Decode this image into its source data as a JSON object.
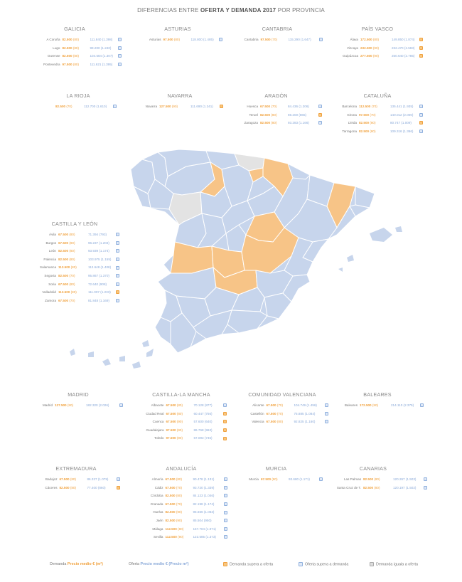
{
  "title": {
    "prefix": "DIFERENCIAS ENTRE ",
    "bold": "OFERTA Y DEMANDA 2017",
    "suffix": " POR PROVINCIA"
  },
  "colors": {
    "demand": "#f0a13d",
    "offer": "#88a8d8",
    "map_default": "#c7d5ec",
    "map_demand": "#f7c487",
    "map_equal": "#e3e3e3"
  },
  "regions": [
    {
      "name": "GALICIA",
      "rows": [
        {
          "province": "A Coruña",
          "demand": "82.500",
          "demand_unit": "(80)",
          "offer": "111.840",
          "offer_unit": "(1.398)",
          "icon": "blue"
        },
        {
          "province": "Lugo",
          "demand": "82.500",
          "demand_unit": "(80)",
          "offer": "99.200",
          "offer_unit": "(1.240)",
          "icon": "blue"
        },
        {
          "province": "Ourense",
          "demand": "82.500",
          "demand_unit": "(80)",
          "offer": "104.584",
          "offer_unit": "(1.307)",
          "icon": "blue"
        },
        {
          "province": "Pontevedra",
          "demand": "97.500",
          "demand_unit": "(80)",
          "offer": "111.621",
          "offer_unit": "(1.395)",
          "icon": "blue"
        }
      ]
    },
    {
      "name": "ASTURIAS",
      "rows": [
        {
          "province": "Asturias",
          "demand": "97.500",
          "demand_unit": "(80)",
          "offer": "118.800",
          "offer_unit": "(1.485)",
          "icon": "blue"
        }
      ]
    },
    {
      "name": "CANTABRIA",
      "rows": [
        {
          "province": "Cantabria",
          "demand": "97.500",
          "demand_unit": "(70)",
          "offer": "115.290",
          "offer_unit": "(1.647)",
          "icon": "blue"
        }
      ]
    },
    {
      "name": "PAÍS VASCO",
      "rows": [
        {
          "province": "Álava",
          "demand": "172.500",
          "demand_unit": "(80)",
          "offer": "149.850",
          "offer_unit": "(1.874)",
          "icon": "orange"
        },
        {
          "province": "Vizcaya",
          "demand": "232.500",
          "demand_unit": "(90)",
          "offer": "232.470",
          "offer_unit": "(2.583)",
          "icon": "orange"
        },
        {
          "province": "Guipúzcoa",
          "demand": "277.500",
          "demand_unit": "(90)",
          "offer": "250.640",
          "offer_unit": "(2.785)",
          "icon": "orange"
        }
      ]
    },
    {
      "name": "LA RIOJA",
      "rows": [
        {
          "province": "",
          "demand": "82.500",
          "demand_unit": "(70)",
          "offer": "112.700",
          "offer_unit": "(1.610)",
          "icon": "blue"
        }
      ]
    },
    {
      "name": "NAVARRA",
      "rows": [
        {
          "province": "Navarra",
          "demand": "127.500",
          "demand_unit": "(90)",
          "offer": "111.690",
          "offer_unit": "(1.241)",
          "icon": "orange"
        }
      ]
    },
    {
      "name": "ARAGÓN",
      "rows": [
        {
          "province": "Huesca",
          "demand": "67.500",
          "demand_unit": "(70)",
          "offer": "84.436",
          "offer_unit": "(1.206)",
          "icon": "blue"
        },
        {
          "province": "Teruel",
          "demand": "82.500",
          "demand_unit": "(80)",
          "offer": "69.200",
          "offer_unit": "(865)",
          "icon": "orange"
        },
        {
          "province": "Zaragoza",
          "demand": "82.500",
          "demand_unit": "(80)",
          "offer": "93.283",
          "offer_unit": "(1.166)",
          "icon": "blue"
        }
      ]
    },
    {
      "name": "CATALUÑA",
      "rows": [
        {
          "province": "Barcelona",
          "demand": "112.500",
          "demand_unit": "(70)",
          "offer": "135.441",
          "offer_unit": "(1.935)",
          "icon": "blue"
        },
        {
          "province": "Girona",
          "demand": "97.500",
          "demand_unit": "(70)",
          "offer": "140.012",
          "offer_unit": "(2.000)",
          "icon": "blue"
        },
        {
          "province": "Lleida",
          "demand": "82.500",
          "demand_unit": "(80)",
          "offer": "80.747",
          "offer_unit": "(1.009)",
          "icon": "orange"
        },
        {
          "province": "Tarragona",
          "demand": "82.500",
          "demand_unit": "(80)",
          "offer": "109.316",
          "offer_unit": "(1.366)",
          "icon": "blue"
        }
      ]
    },
    {
      "name": "CASTILLA Y LEÓN",
      "rows": [
        {
          "province": "Ávila",
          "demand": "67.500",
          "demand_unit": "(80)",
          "offer": "71.394",
          "offer_unit": "(793)",
          "icon": "blue"
        },
        {
          "province": "Burgos",
          "demand": "67.500",
          "demand_unit": "(80)",
          "offer": "96.237",
          "offer_unit": "(1.203)",
          "icon": "blue"
        },
        {
          "province": "León",
          "demand": "82.500",
          "demand_unit": "(80)",
          "offer": "93.939",
          "offer_unit": "(1.174)",
          "icon": "blue"
        },
        {
          "province": "Palencia",
          "demand": "82.500",
          "demand_unit": "(80)",
          "offer": "103.975",
          "offer_unit": "(1.155)",
          "icon": "blue"
        },
        {
          "province": "Salamanca",
          "demand": "112.500",
          "demand_unit": "(80)",
          "offer": "112.648",
          "offer_unit": "(1.408)",
          "icon": "blue"
        },
        {
          "province": "Segovia",
          "demand": "82.500",
          "demand_unit": "(70)",
          "offer": "95.867",
          "offer_unit": "(1.370)",
          "icon": "blue"
        },
        {
          "province": "Soria",
          "demand": "67.500",
          "demand_unit": "(80)",
          "offer": "72.640",
          "offer_unit": "(908)",
          "icon": "blue"
        },
        {
          "province": "Valladolid",
          "demand": "112.500",
          "demand_unit": "(80)",
          "offer": "111.007",
          "offer_unit": "(1.233)",
          "icon": "orange"
        },
        {
          "province": "Zamora",
          "demand": "67.500",
          "demand_unit": "(70)",
          "offer": "81.848",
          "offer_unit": "(1.169)",
          "icon": "blue"
        }
      ]
    },
    {
      "name": "MADRID",
      "rows": [
        {
          "province": "Madrid",
          "demand": "127.500",
          "demand_unit": "(90)",
          "offer": "182.320",
          "offer_unit": "(2.026)",
          "icon": "blue"
        }
      ]
    },
    {
      "name": "CASTILLA-LA MANCHA",
      "rows": [
        {
          "province": "Albacete",
          "demand": "67.500",
          "demand_unit": "(80)",
          "offer": "70.128",
          "offer_unit": "(877)",
          "icon": "blue"
        },
        {
          "province": "Ciudad Real",
          "demand": "67.500",
          "demand_unit": "(80)",
          "offer": "60.447",
          "offer_unit": "(756)",
          "icon": "orange"
        },
        {
          "province": "Cuenca",
          "demand": "67.500",
          "demand_unit": "(90)",
          "offer": "57.600",
          "offer_unit": "(640)",
          "icon": "orange"
        },
        {
          "province": "Guadalajara",
          "demand": "97.500",
          "demand_unit": "(90)",
          "offer": "86.768",
          "offer_unit": "(963)",
          "icon": "orange"
        },
        {
          "province": "Toledo",
          "demand": "97.500",
          "demand_unit": "(90)",
          "offer": "67.093",
          "offer_unit": "(745)",
          "icon": "orange"
        }
      ]
    },
    {
      "name": "COMUNIDAD VALENCIANA",
      "rows": [
        {
          "province": "Alicante",
          "demand": "67.500",
          "demand_unit": "(70)",
          "offer": "104.749",
          "offer_unit": "(1.496)",
          "icon": "blue"
        },
        {
          "province": "Castellón",
          "demand": "67.500",
          "demand_unit": "(70)",
          "offer": "75.885",
          "offer_unit": "(1.084)",
          "icon": "blue"
        },
        {
          "province": "Valencia",
          "demand": "67.500",
          "demand_unit": "(80)",
          "offer": "92.825",
          "offer_unit": "(1.160)",
          "icon": "blue"
        }
      ]
    },
    {
      "name": "BALEARES",
      "rows": [
        {
          "province": "Baleares",
          "demand": "172.500",
          "demand_unit": "(90)",
          "offer": "214.110",
          "offer_unit": "(2.379)",
          "icon": "blue"
        }
      ]
    },
    {
      "name": "EXTREMADURA",
      "rows": [
        {
          "province": "Badajoz",
          "demand": "67.500",
          "demand_unit": "(80)",
          "offer": "86.327",
          "offer_unit": "(1.079)",
          "icon": "blue"
        },
        {
          "province": "Cáceres",
          "demand": "82.500",
          "demand_unit": "(80)",
          "offer": "77.400",
          "offer_unit": "(860)",
          "icon": "orange"
        }
      ]
    },
    {
      "name": "ANDALUCÍA",
      "rows": [
        {
          "province": "Almería",
          "demand": "67.500",
          "demand_unit": "(80)",
          "offer": "90.478",
          "offer_unit": "(1.131)",
          "icon": "blue"
        },
        {
          "province": "Cádiz",
          "demand": "67.500",
          "demand_unit": "(70)",
          "offer": "93.720",
          "offer_unit": "(1.339)",
          "icon": "blue"
        },
        {
          "province": "Córdoba",
          "demand": "82.500",
          "demand_unit": "(80)",
          "offer": "84.123",
          "offer_unit": "(1.046)",
          "icon": "blue"
        },
        {
          "province": "Granada",
          "demand": "67.500",
          "demand_unit": "(70)",
          "offer": "82.198",
          "offer_unit": "(1.174)",
          "icon": "blue"
        },
        {
          "province": "Huelva",
          "demand": "82.500",
          "demand_unit": "(90)",
          "offer": "95.666",
          "offer_unit": "(1.063)",
          "icon": "blue"
        },
        {
          "province": "Jaén",
          "demand": "82.500",
          "demand_unit": "(90)",
          "offer": "85.504",
          "offer_unit": "(950)",
          "icon": "blue"
        },
        {
          "province": "Málaga",
          "demand": "112.500",
          "demand_unit": "(80)",
          "offer": "157.704",
          "offer_unit": "(1.971)",
          "icon": "blue"
        },
        {
          "province": "Sevilla",
          "demand": "112.500",
          "demand_unit": "(90)",
          "offer": "123.585",
          "offer_unit": "(1.373)",
          "icon": "blue"
        }
      ]
    },
    {
      "name": "MURCIA",
      "rows": [
        {
          "province": "Murcia",
          "demand": "67.500",
          "demand_unit": "(80)",
          "offer": "93.680",
          "offer_unit": "(1.171)",
          "icon": "blue"
        }
      ]
    },
    {
      "name": "CANARIAS",
      "rows": [
        {
          "province": "Las Palmas",
          "demand": "82.500",
          "demand_unit": "(80)",
          "offer": "120.267",
          "offer_unit": "(1.503)",
          "icon": "blue"
        },
        {
          "province": "Santa Cruz de T.",
          "demand": "82.500",
          "demand_unit": "(80)",
          "offer": "120.197",
          "offer_unit": "(1.502)",
          "icon": "blue"
        }
      ]
    }
  ],
  "legend": {
    "demand_prefix": "Demanda ",
    "demand_bold": "Precio medio € (m²)",
    "offer_prefix": "Oferta ",
    "offer_bold": "Precio medio € (Precio m²)",
    "demand_exceeds": "Demanda supera a oferta",
    "offer_exceeds": "Oferta supera a demanda",
    "equal": "Demanda iguala a oferta"
  }
}
